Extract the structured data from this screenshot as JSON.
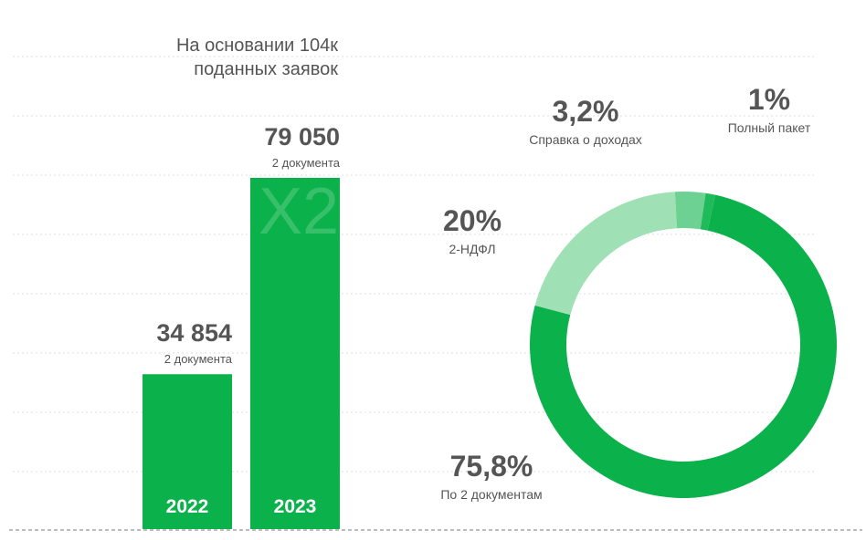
{
  "caption": {
    "line1": "На основании 104к",
    "line2": "поданных заявок"
  },
  "multiplier": "X2",
  "colors": {
    "bar": "#0bb14a",
    "grid": "#dcdcdc",
    "baseline": "#a6a6a6",
    "value_text": "#555555",
    "sub_text": "#555555",
    "bar_label": "#ffffff"
  },
  "chart_data": [
    {
      "type": "bar",
      "categories": [
        "2022",
        "2023"
      ],
      "values": [
        34854,
        79050
      ],
      "value_labels": [
        "34 854",
        "79 050"
      ],
      "sublabels": [
        "2 документа",
        "2 документа"
      ],
      "ylim": [
        0,
        90000
      ],
      "grid": true
    },
    {
      "type": "pie",
      "donut": true,
      "slices": [
        {
          "label": "По 2 документам",
          "value": 75.8,
          "display": "75,8%",
          "color": "#0bb14a"
        },
        {
          "label": "2-НДФЛ",
          "value": 20,
          "display": "20%",
          "color": "#9fe0b4"
        },
        {
          "label": "Справка о доходах",
          "value": 3.2,
          "display": "3,2%",
          "color": "#6dd193"
        },
        {
          "label": "Полный пакет",
          "value": 1,
          "display": "1%",
          "color": "#1fbb5a"
        }
      ]
    }
  ]
}
